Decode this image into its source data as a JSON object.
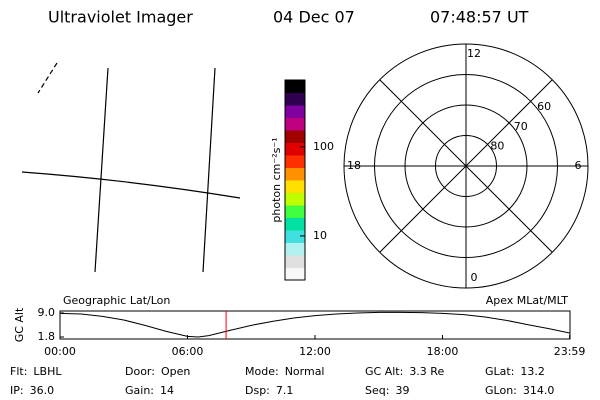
{
  "header": {
    "title": "Ultraviolet Imager",
    "date": "04 Dec 07",
    "time": "07:48:57 UT"
  },
  "colorbar": {
    "label": "photon cm⁻²s⁻¹",
    "log_scale": true,
    "lim": [
      3.2,
      562
    ],
    "ticks": [
      10,
      100
    ],
    "colors": [
      "#f8f8f8",
      "#e0e0e0",
      "#b0f0f0",
      "#40e0e0",
      "#00e0a0",
      "#40ff40",
      "#c0ff00",
      "#ffe000",
      "#ff9000",
      "#ff3000",
      "#e00000",
      "#a00000",
      "#c00080",
      "#8000a0",
      "#300050",
      "#000000"
    ]
  },
  "polar": {
    "rlim": [
      50,
      90
    ],
    "rticks": [
      60,
      70,
      80
    ],
    "mlt_ticks": [
      12,
      6,
      0,
      18
    ]
  },
  "chart_data": {
    "type": "line",
    "title_left": "Geographic Lat/Lon",
    "title_right": "Apex MLat/MLT",
    "ylabel": "GC Alt",
    "x": [
      0,
      1,
      2,
      3,
      4,
      5,
      6,
      6.5,
      7,
      8,
      9,
      10,
      11,
      12,
      13,
      14,
      15,
      16,
      17,
      18,
      19,
      20,
      21,
      22,
      23,
      23.98
    ],
    "series": [
      {
        "color": "#000000",
        "values": [
          8.9,
          8.7,
          8.0,
          6.9,
          5.3,
          3.5,
          2.0,
          1.8,
          2.2,
          3.8,
          5.3,
          6.5,
          7.5,
          8.2,
          8.7,
          9.0,
          9.2,
          9.2,
          9.1,
          8.9,
          8.5,
          7.8,
          6.8,
          5.5,
          4.3,
          3.0
        ]
      }
    ],
    "current_time": 7.816,
    "current_color": "#ff0000",
    "xlim": [
      0,
      24
    ],
    "ylim": [
      1.2,
      9.6
    ],
    "xticks": [
      {
        "value": 0,
        "label": "00:00"
      },
      {
        "value": 6,
        "label": "06:00"
      },
      {
        "value": 12,
        "label": "12:00"
      },
      {
        "value": 18,
        "label": "18:00"
      },
      {
        "value": 23.98,
        "label": "23:59"
      }
    ],
    "yticks": [
      {
        "value": 9,
        "label": "9.0"
      },
      1.8
    ]
  },
  "info": [
    [
      {
        "label": "Flt:",
        "value": "LBHL"
      },
      {
        "label": "IP:",
        "value": "36.0"
      }
    ],
    [
      {
        "label": "Door:",
        "value": "Open"
      },
      {
        "label": "Gain:",
        "value": "14"
      }
    ],
    [
      {
        "label": "Mode:",
        "value": "Normal"
      },
      {
        "label": "Dsp:",
        "value": "7.1"
      }
    ],
    [
      {
        "label": "GC Alt:",
        "value": "3.3 Re"
      },
      {
        "label": "Seq:",
        "value": "39"
      }
    ],
    [
      {
        "label": "GLat:",
        "value": "13.2"
      },
      {
        "label": "GLon:",
        "value": "314.0"
      }
    ]
  ]
}
